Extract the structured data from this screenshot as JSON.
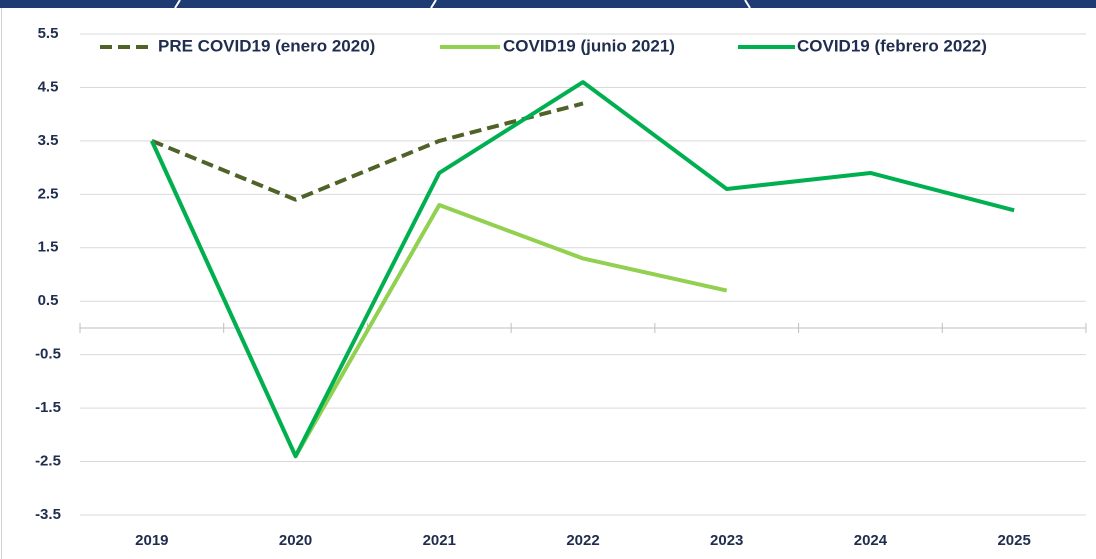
{
  "chart_data": {
    "type": "line",
    "categories": [
      "2019",
      "2020",
      "2021",
      "2022",
      "2023",
      "2024",
      "2025"
    ],
    "series": [
      {
        "name": "PRE COVID19 (enero 2020)",
        "color": "#4f6228",
        "dashed": true,
        "values": [
          3.5,
          2.4,
          3.5,
          4.2,
          null,
          null,
          null
        ]
      },
      {
        "name": "COVID19 (junio 2021)",
        "color": "#92d050",
        "values": [
          3.5,
          -2.4,
          2.3,
          1.3,
          0.7,
          null,
          null
        ]
      },
      {
        "name": "COVID19 (febrero 2022)",
        "color": "#00b050",
        "values": [
          3.5,
          -2.4,
          2.9,
          4.6,
          2.6,
          2.9,
          2.2
        ]
      }
    ],
    "ylim": [
      -3.5,
      5.5
    ],
    "yticks": [
      5.5,
      4.5,
      3.5,
      2.5,
      1.5,
      0.5,
      -0.5,
      -1.5,
      -2.5,
      -3.5
    ],
    "grid": true,
    "legend": "top"
  }
}
